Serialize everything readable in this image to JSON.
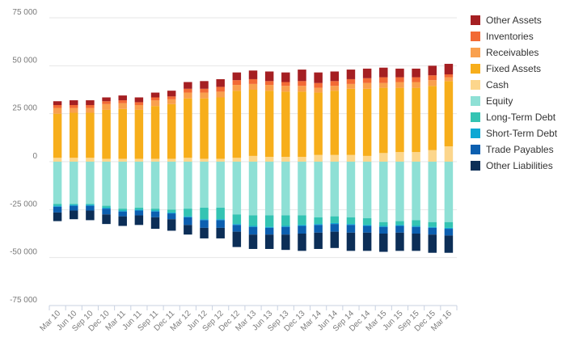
{
  "chart_data": {
    "type": "bar",
    "stacked": true,
    "title": "",
    "xlabel": "",
    "ylabel": "",
    "ylim": [
      -75000,
      75000
    ],
    "yticks": [
      -75000,
      -50000,
      -25000,
      0,
      25000,
      50000,
      75000
    ],
    "ytick_labels": [
      "-75 000",
      "-50 000",
      "-25 000",
      "0",
      "25 000",
      "50 000",
      "75 000"
    ],
    "grid": true,
    "legend_position": "right",
    "categories": [
      "Mar 10",
      "Jun 10",
      "Sep 10",
      "Dec 10",
      "Mar 11",
      "Jun 11",
      "Sep 11",
      "Dec 11",
      "Mar 12",
      "Jun 12",
      "Sep 12",
      "Dec 12",
      "Mar 13",
      "Jun 13",
      "Sep 13",
      "Dec 13",
      "Mar 14",
      "Jun 14",
      "Sep 14",
      "Dec 14",
      "Mar 15",
      "Jun 15",
      "Sep 15",
      "Dec 15",
      "Mar 16"
    ],
    "x_labels_shown": [
      "Mar 10",
      "Jun 10",
      "Sep 10",
      "Dec 10",
      "Mar 11",
      "Jun 11",
      "Sep 11",
      "Dec 11",
      "Mar 12",
      "Jun 12",
      "Sep 12",
      "Dec 12",
      "Mar 13",
      "Jun 13",
      "Sep 13",
      "Dec 13",
      "Mar 14",
      "Jun 14",
      "Sep 14",
      "Dec 14",
      "Mar 15",
      "Jun 15",
      "Sep 15",
      "Dec 15",
      "Mar 16"
    ],
    "series": [
      {
        "name": "Cash",
        "color": "#fcd68c",
        "values": [
          2000,
          2000,
          2000,
          1500,
          1500,
          1500,
          1500,
          1500,
          2000,
          1500,
          1500,
          2000,
          3000,
          2500,
          2500,
          2500,
          3500,
          3500,
          3500,
          3000,
          4500,
          5000,
          5000,
          6000,
          8000
        ]
      },
      {
        "name": "Fixed Assets",
        "color": "#f7ae1b",
        "values": [
          23000,
          23500,
          23500,
          25500,
          26000,
          25500,
          27500,
          28500,
          31000,
          31500,
          32000,
          35000,
          34500,
          34500,
          34000,
          34000,
          32500,
          33500,
          34500,
          35000,
          34000,
          33500,
          33500,
          33500,
          34000
        ]
      },
      {
        "name": "Receivables",
        "color": "#f9a04e",
        "values": [
          3000,
          2500,
          2500,
          3000,
          3000,
          2500,
          3000,
          2500,
          3000,
          3000,
          3000,
          3000,
          3000,
          3000,
          3000,
          3000,
          2500,
          2500,
          2500,
          3000,
          2500,
          3000,
          3000,
          3000,
          2000
        ]
      },
      {
        "name": "Inventories",
        "color": "#f26a35",
        "values": [
          1500,
          1500,
          1500,
          1500,
          1500,
          1500,
          1500,
          1500,
          2000,
          2000,
          2500,
          2500,
          2500,
          2000,
          2000,
          2500,
          2500,
          2500,
          2500,
          2500,
          3000,
          2500,
          2500,
          2500,
          1500
        ]
      },
      {
        "name": "Other Assets",
        "color": "#a51f22",
        "values": [
          2000,
          2500,
          2500,
          2000,
          2500,
          2500,
          2500,
          3000,
          3500,
          4000,
          4000,
          4000,
          4500,
          5000,
          5000,
          6000,
          5500,
          5000,
          5000,
          5000,
          5000,
          4500,
          4500,
          5000,
          5500
        ]
      },
      {
        "name": "Equity",
        "color": "#8ee0d5",
        "values": [
          -22000,
          -22000,
          -22000,
          -23000,
          -24500,
          -24000,
          -24500,
          -25000,
          -24500,
          -24000,
          -24000,
          -27500,
          -28000,
          -28000,
          -28000,
          -28000,
          -29000,
          -28500,
          -29000,
          -29500,
          -31500,
          -31000,
          -30500,
          -31500,
          -31500
        ]
      },
      {
        "name": "Long-Term Debt",
        "color": "#34c4b3",
        "values": [
          -1000,
          -500,
          -500,
          -1000,
          -1000,
          -1000,
          -1000,
          -1500,
          -4000,
          -6000,
          -6000,
          -5000,
          -5500,
          -6000,
          -5500,
          -5000,
          -3500,
          -3500,
          -3500,
          -3500,
          -2000,
          -2000,
          -3000,
          -2500,
          -3000
        ]
      },
      {
        "name": "Short-Term Debt",
        "color": "#0ea8d4",
        "values": [
          -500,
          -500,
          -500,
          -500,
          -500,
          -500,
          -500,
          -500,
          -500,
          -500,
          -500,
          -500,
          -500,
          -500,
          -500,
          -500,
          -500,
          -500,
          -500,
          -500,
          -500,
          -500,
          -500,
          -500,
          -500
        ]
      },
      {
        "name": "Trade Payables",
        "color": "#0c5fb0",
        "values": [
          -3000,
          -2500,
          -2500,
          -3000,
          -2500,
          -2500,
          -3000,
          -3000,
          -4000,
          -4000,
          -4000,
          -3500,
          -4000,
          -3500,
          -4000,
          -4000,
          -4000,
          -4000,
          -4000,
          -3500,
          -3500,
          -3500,
          -3500,
          -3500,
          -3500
        ]
      },
      {
        "name": "Other Liabilities",
        "color": "#0c2e57",
        "values": [
          -4500,
          -4500,
          -5000,
          -5000,
          -5000,
          -5000,
          -6000,
          -6000,
          -5000,
          -5500,
          -5500,
          -8000,
          -7500,
          -7500,
          -8000,
          -9000,
          -8500,
          -8500,
          -9500,
          -9500,
          -9500,
          -9500,
          -9000,
          -9500,
          -9000
        ]
      }
    ],
    "legend_order": [
      "Other Assets",
      "Inventories",
      "Receivables",
      "Fixed Assets",
      "Cash",
      "Equity",
      "Long-Term Debt",
      "Short-Term Debt",
      "Trade Payables",
      "Other Liabilities"
    ]
  }
}
